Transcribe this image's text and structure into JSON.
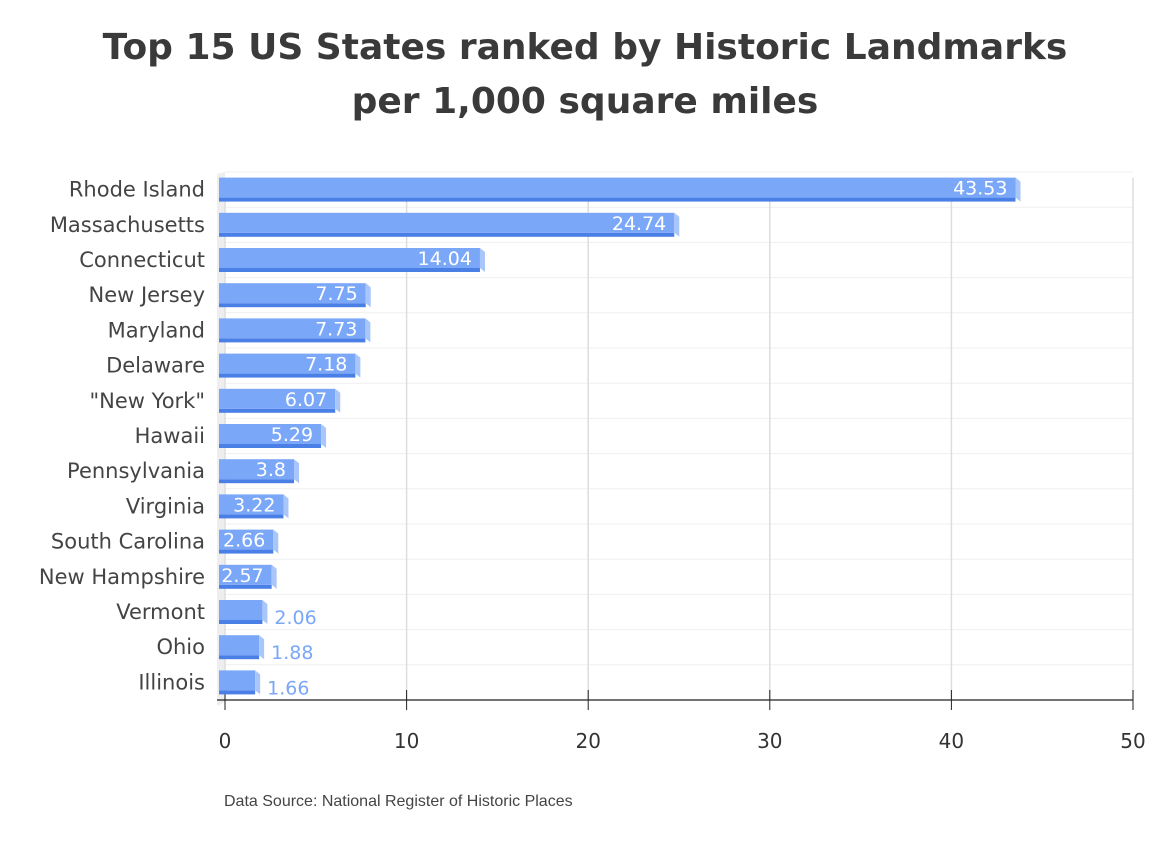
{
  "title_line1": "Top 15 US States ranked by Historic Landmarks",
  "title_line2": "per 1,000 square miles",
  "source": "Data Source: National Register of Historic Places",
  "colors": {
    "bar": "#7aa7f8",
    "bar_side": "#a9c6fb",
    "bar_bottom": "#4a7fe6",
    "label_inside": "#ffffff",
    "label_outside": "#7aa7f8",
    "grid": "#dddddd",
    "text": "#444444"
  },
  "chart_data": {
    "type": "bar",
    "orientation": "horizontal",
    "categories": [
      "Rhode Island",
      "Massachusetts",
      "Connecticut",
      "New Jersey",
      "Maryland",
      "Delaware",
      "\"New York\"",
      "Hawaii",
      "Pennsylvania",
      "Virginia",
      "South Carolina",
      "New Hampshire",
      "Vermont",
      "Ohio",
      "Illinois"
    ],
    "values": [
      43.53,
      24.74,
      14.04,
      7.75,
      7.73,
      7.18,
      6.07,
      5.29,
      3.8,
      3.22,
      2.66,
      2.57,
      2.06,
      1.88,
      1.66
    ],
    "value_labels": [
      "43.53",
      "24.74",
      "14.04",
      "7.75",
      "7.73",
      "7.18",
      "6.07",
      "5.29",
      "3.8",
      "3.22",
      "2.66",
      "2.57",
      "2.06",
      "1.88",
      "1.66"
    ],
    "x_ticks": [
      "0",
      "10",
      "20",
      "30",
      "40",
      "50"
    ],
    "xlim": [
      0,
      50
    ],
    "grid": true,
    "title": "Top 15 US States ranked by Historic Landmarks per 1,000 square miles"
  }
}
